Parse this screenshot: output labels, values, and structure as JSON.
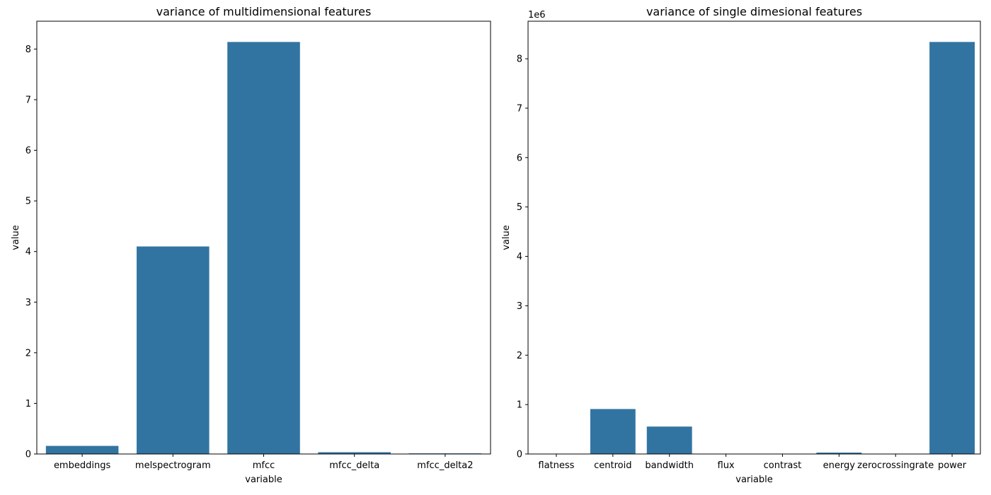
{
  "chart_data": [
    {
      "type": "bar",
      "title": "variance of multidimensional features",
      "xlabel": "variable",
      "ylabel": "value",
      "categories": [
        "embeddings",
        "melspectrogram",
        "mfcc",
        "mfcc_delta",
        "mfcc_delta2"
      ],
      "values": [
        0.16,
        4.1,
        8.14,
        0.035,
        0.012
      ],
      "ylim": [
        0,
        8.55
      ],
      "yticks": [
        0,
        1,
        2,
        3,
        4,
        5,
        6,
        7,
        8
      ],
      "ytick_labels": [
        "0",
        "1",
        "2",
        "3",
        "4",
        "5",
        "6",
        "7",
        "8"
      ],
      "offset_text": "",
      "grid": false,
      "bar_color": "#3274a1"
    },
    {
      "type": "bar",
      "title": "variance of single dimesional features",
      "xlabel": "variable",
      "ylabel": "value",
      "categories": [
        "flatness",
        "centroid",
        "bandwidth",
        "flux",
        "contrast",
        "energy",
        "zerocrossingrate",
        "power"
      ],
      "values": [
        0,
        910000,
        555000,
        0,
        0,
        28000,
        0,
        8340000
      ],
      "ylim": [
        0,
        8760000
      ],
      "yticks": [
        0,
        1000000,
        2000000,
        3000000,
        4000000,
        5000000,
        6000000,
        7000000,
        8000000
      ],
      "ytick_labels": [
        "0",
        "1",
        "2",
        "3",
        "4",
        "5",
        "6",
        "7",
        "8"
      ],
      "offset_text": "1e6",
      "grid": false,
      "bar_color": "#3274a1"
    }
  ]
}
